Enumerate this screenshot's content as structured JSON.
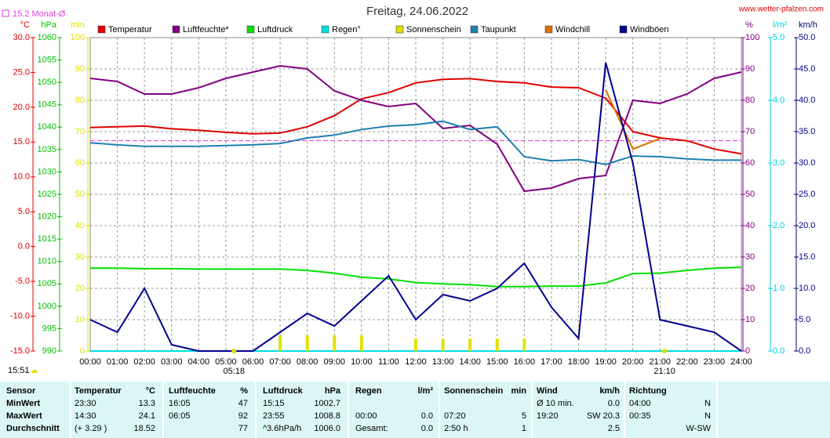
{
  "chart_data": {
    "type": "line",
    "title": "Freitag, 24.06.2022",
    "source": "www.wetter-pfalzen.com",
    "average": {
      "value": 15.2,
      "name": "Monat-Ø",
      "axis": 0,
      "color": "#e040e0"
    },
    "current_time": "15:51",
    "sunrise": "05:18",
    "sunset": "21:10",
    "sun_events": [
      5.3,
      21.17
    ],
    "x": [
      "00:00",
      "01:00",
      "02:00",
      "03:00",
      "04:00",
      "05:00",
      "06:00",
      "07:00",
      "08:00",
      "09:00",
      "10:00",
      "11:00",
      "12:00",
      "13:00",
      "14:00",
      "15:00",
      "16:00",
      "17:00",
      "18:00",
      "19:00",
      "20:00",
      "21:00",
      "22:00",
      "23:00",
      "24:00"
    ],
    "axes": [
      {
        "unit": "°C",
        "color": "#e00000",
        "side": "left",
        "lim": [
          -15,
          30
        ],
        "ticks": [
          {
            "value": -15,
            "label": "-15.0"
          },
          {
            "value": -10,
            "label": "-10.0"
          },
          {
            "value": -5,
            "label": "-5.0"
          },
          {
            "value": 0,
            "label": "0.0"
          },
          {
            "value": 5,
            "label": "5.0"
          },
          {
            "value": 10,
            "label": "10.0"
          },
          {
            "value": 15,
            "label": "15.0"
          },
          {
            "value": 20,
            "label": "20.0"
          },
          {
            "value": 25,
            "label": "25.0"
          },
          {
            "value": 30,
            "label": "30.0"
          }
        ]
      },
      {
        "unit": "hPa",
        "color": "#00c000",
        "side": "left",
        "lim": [
          990,
          1060
        ],
        "ticks": [
          990,
          995,
          1000,
          1005,
          1010,
          1015,
          1020,
          1025,
          1030,
          1035,
          1040,
          1045,
          1050,
          1055,
          1060
        ]
      },
      {
        "unit": "min",
        "color": "#e0e000",
        "side": "left",
        "lim": [
          0,
          100
        ],
        "ticks": [
          0,
          10,
          20,
          30,
          40,
          50,
          60,
          70,
          80,
          90,
          100
        ]
      },
      {
        "unit": "%",
        "color": "#800080",
        "side": "right",
        "lim": [
          0,
          100
        ],
        "grid": true,
        "ticks": [
          0,
          10,
          20,
          30,
          40,
          50,
          60,
          70,
          80,
          90,
          100
        ]
      },
      {
        "unit": "l/m²",
        "color": "#00d0e0",
        "side": "right",
        "lim": [
          0,
          5
        ],
        "ticks": [
          {
            "value": 0,
            "label": "0.0"
          },
          {
            "value": 1,
            "label": "1.0"
          },
          {
            "value": 2,
            "label": "2.0"
          },
          {
            "value": 3,
            "label": "3.0"
          },
          {
            "value": 4,
            "label": "4.0"
          },
          {
            "value": 5,
            "label": "5.0"
          }
        ]
      },
      {
        "unit": "km/h",
        "color": "#000080",
        "side": "right",
        "lim": [
          0,
          50
        ],
        "ticks": [
          {
            "value": 0,
            "label": "0.0"
          },
          {
            "value": 5,
            "label": "5.0"
          },
          {
            "value": 10,
            "label": "10.0"
          },
          {
            "value": 15,
            "label": "15.0"
          },
          {
            "value": 20,
            "label": "20.0"
          },
          {
            "value": 25,
            "label": "25.0"
          },
          {
            "value": 30,
            "label": "30.0"
          },
          {
            "value": 35,
            "label": "35.0"
          },
          {
            "value": 40,
            "label": "40.0"
          },
          {
            "value": 45,
            "label": "45.0"
          },
          {
            "value": 50,
            "label": "50.0"
          }
        ]
      }
    ],
    "series": [
      {
        "name": "Temperatur",
        "color": "#e00000",
        "axis": 0,
        "kind": "line",
        "values": [
          17.1,
          17.2,
          17.3,
          16.9,
          16.7,
          16.4,
          16.2,
          16.3,
          17.2,
          18.8,
          21.2,
          22.1,
          23.5,
          24.0,
          24.1,
          23.7,
          23.5,
          22.9,
          22.8,
          21.3,
          16.5,
          15.6,
          15.2,
          14.0,
          13.3
        ]
      },
      {
        "name": "Luftfeuchte*",
        "color": "#800080",
        "axis": 3,
        "kind": "line",
        "values": [
          87,
          86,
          82,
          82,
          84,
          87,
          89,
          91,
          90,
          83,
          80,
          78,
          79,
          71,
          72,
          66,
          51,
          52,
          55,
          56,
          80,
          79,
          82,
          87,
          89
        ]
      },
      {
        "name": "Luftdruck",
        "color": "#00e000",
        "axis": 1,
        "kind": "line",
        "values": [
          1008.5,
          1008.5,
          1008.4,
          1008.4,
          1008.3,
          1008.3,
          1008.3,
          1008.3,
          1008.0,
          1007.4,
          1006.5,
          1006.1,
          1005.3,
          1005.0,
          1004.8,
          1004.4,
          1004.4,
          1004.5,
          1004.5,
          1005.2,
          1007.3,
          1007.4,
          1008.0,
          1008.5,
          1008.7
        ]
      },
      {
        "name": "Regen°",
        "color": "#00e0e0",
        "axis": 4,
        "kind": "line",
        "values": [
          0,
          0,
          0,
          0,
          0,
          0,
          0,
          0,
          0,
          0,
          0,
          0,
          0,
          0,
          0,
          0,
          0,
          0,
          0,
          0,
          0,
          0,
          0,
          0,
          0
        ]
      },
      {
        "name": "Sonnenschein",
        "color": "#e0e000",
        "axis": 2,
        "kind": "bar",
        "values": [
          0,
          0,
          0,
          0,
          0,
          0,
          0,
          5,
          5,
          5,
          5,
          0,
          4,
          4,
          4,
          4,
          4,
          0,
          0,
          0,
          0,
          0,
          0,
          0,
          0
        ]
      },
      {
        "name": "Taupunkt",
        "color": "#1e7fb0",
        "axis": 0,
        "kind": "line",
        "values": [
          14.9,
          14.6,
          14.4,
          14.4,
          14.4,
          14.5,
          14.6,
          14.8,
          15.6,
          16.0,
          16.8,
          17.3,
          17.5,
          18.0,
          16.8,
          17.2,
          12.9,
          12.3,
          12.5,
          11.8,
          13.0,
          12.9,
          12.6,
          12.4,
          12.4
        ]
      },
      {
        "name": "Windchill",
        "color": "#e07000",
        "axis": 0,
        "kind": "line",
        "values": [
          null,
          null,
          null,
          null,
          null,
          null,
          null,
          null,
          null,
          null,
          null,
          null,
          null,
          null,
          null,
          null,
          null,
          null,
          null,
          22.5,
          14.0,
          15.5,
          null,
          null,
          null
        ]
      },
      {
        "name": "Windböen",
        "color": "#000090",
        "axis": 5,
        "kind": "line",
        "values": [
          5,
          3,
          10,
          1,
          0,
          0,
          0,
          3,
          6,
          4,
          8,
          12,
          5,
          9,
          8,
          10,
          14,
          7,
          2,
          46,
          30,
          5,
          4,
          3,
          0
        ]
      }
    ],
    "table": {
      "rows": [
        [
          "Sensor",
          "Temperatur",
          "°C",
          "Luftfeuchte",
          "%",
          "Luftdruck",
          "hPa",
          "Regen",
          "l/m²",
          "Sonnenschein",
          "min",
          "Wind",
          "km/h",
          "Richtung",
          null
        ],
        [
          "MinWert",
          "23:30",
          "13.3",
          "16:05",
          "47",
          "15:15",
          "1002.7",
          null,
          null,
          null,
          null,
          "Ø 10 min.",
          "0.0",
          "04:00",
          "N"
        ],
        [
          "MaxWert",
          "14:30",
          "24.1",
          "06:05",
          "92",
          "23:55",
          "1008.8",
          "00:00",
          "0.0",
          "07:20",
          "5",
          "19:20",
          "SW 20.3",
          "00:35",
          "N"
        ],
        [
          "Durchschnitt",
          "(+ 3.29 )",
          "18.52",
          null,
          "77",
          "^3.6hPa/h",
          "1006.0",
          "Gesamt:",
          "0.0",
          "2:50 h",
          "1",
          null,
          "2.5",
          null,
          "W-SW"
        ]
      ]
    }
  }
}
